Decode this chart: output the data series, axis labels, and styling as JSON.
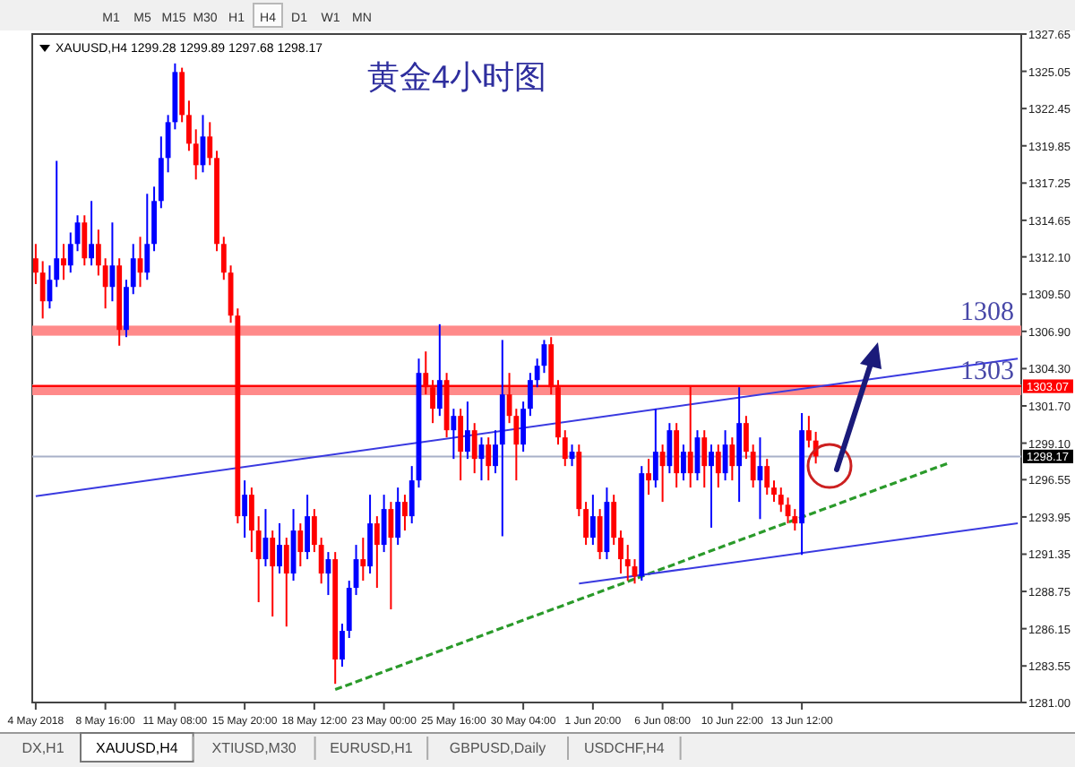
{
  "chart_data": {
    "type": "candlestick",
    "title": "黄金4小时图",
    "categories": [
      "4 May 2018",
      null,
      null,
      null,
      null,
      null,
      null,
      null,
      null,
      null,
      "8 May 16:00",
      null,
      null,
      null,
      null,
      null,
      null,
      null,
      null,
      null,
      "11 May 08:00",
      null,
      null,
      null,
      null,
      null,
      null,
      null,
      null,
      null,
      "15 May 20:00",
      null,
      null,
      null,
      null,
      null,
      null,
      null,
      null,
      null,
      "18 May 12:00",
      null,
      null,
      null,
      null,
      null,
      null,
      null,
      null,
      null,
      "23 May 00:00",
      null,
      null,
      null,
      null,
      null,
      null,
      null,
      null,
      null,
      "25 May 16:00",
      null,
      null,
      null,
      null,
      null,
      null,
      null,
      null,
      null,
      "30 May 04:00",
      null,
      null,
      null,
      null,
      null,
      null,
      null,
      null,
      null,
      "1 Jun 20:00",
      null,
      null,
      null,
      null,
      null,
      null,
      null,
      null,
      null,
      "6 Jun 08:00",
      null,
      null,
      null,
      null,
      null,
      null,
      null,
      null,
      null,
      "10 Jun 22:00",
      null,
      null,
      null,
      null,
      null,
      null,
      null,
      null,
      null,
      "13 Jun 12:00",
      null,
      null,
      null,
      null,
      null,
      null,
      null,
      null,
      null,
      null,
      null,
      null,
      null,
      null,
      null,
      null,
      null,
      null,
      null,
      null,
      null,
      null,
      null,
      null,
      null,
      null,
      null,
      null,
      null,
      null,
      null
    ],
    "ohlc": [
      [
        1312,
        1313,
        1310.2,
        1311
      ],
      [
        1311,
        1311.8,
        1307.8,
        1309
      ],
      [
        1309,
        1311.5,
        1308.5,
        1310.5
      ],
      [
        1310.5,
        1318.8,
        1310,
        1312
      ],
      [
        1312,
        1313,
        1310.5,
        1311.5
      ],
      [
        1311.5,
        1313.8,
        1311,
        1313
      ],
      [
        1313,
        1315,
        1312.5,
        1314.5
      ],
      [
        1314.5,
        1315,
        1311.5,
        1312
      ],
      [
        1312,
        1316,
        1311.5,
        1313
      ],
      [
        1313,
        1314,
        1310.8,
        1311.5
      ],
      [
        1311.5,
        1312,
        1308.5,
        1310
      ],
      [
        1310,
        1314.5,
        1309,
        1311.5
      ],
      [
        1311.5,
        1312,
        1305.9,
        1307
      ],
      [
        1307,
        1310.5,
        1306.5,
        1310
      ],
      [
        1310,
        1313,
        1309.5,
        1312
      ],
      [
        1312,
        1313.5,
        1310,
        1311
      ],
      [
        1311,
        1316.5,
        1310.5,
        1313
      ],
      [
        1313,
        1317,
        1312.5,
        1316
      ],
      [
        1316,
        1320.5,
        1315.5,
        1319
      ],
      [
        1319,
        1322,
        1318,
        1321.5
      ],
      [
        1321.5,
        1325.6,
        1321,
        1325
      ],
      [
        1325,
        1325.3,
        1321.5,
        1322
      ],
      [
        1322,
        1323,
        1319.5,
        1320
      ],
      [
        1320,
        1321,
        1317.5,
        1318.5
      ],
      [
        1318.5,
        1322,
        1318,
        1320.5
      ],
      [
        1320.5,
        1321.5,
        1318.5,
        1319
      ],
      [
        1319,
        1319.5,
        1312.5,
        1313
      ],
      [
        1313,
        1313.5,
        1310.5,
        1311
      ],
      [
        1311,
        1311.5,
        1307.5,
        1308
      ],
      [
        1308,
        1308.5,
        1293.5,
        1294
      ],
      [
        1294,
        1296.5,
        1292.5,
        1295.5
      ],
      [
        1295.5,
        1296,
        1291.5,
        1293
      ],
      [
        1293,
        1294,
        1288,
        1291
      ],
      [
        1291,
        1294.5,
        1290.5,
        1292.5
      ],
      [
        1292.5,
        1293,
        1287,
        1290.5
      ],
      [
        1290.5,
        1293.5,
        1290,
        1292
      ],
      [
        1292,
        1292.5,
        1286.3,
        1290
      ],
      [
        1290,
        1294.5,
        1289.5,
        1293
      ],
      [
        1293,
        1293.5,
        1290.5,
        1291.5
      ],
      [
        1291.5,
        1295.5,
        1291,
        1294
      ],
      [
        1294,
        1294.5,
        1291.5,
        1292
      ],
      [
        1292,
        1292.5,
        1289.3,
        1290
      ],
      [
        1290,
        1291.5,
        1288.5,
        1291
      ],
      [
        1291,
        1291.5,
        1282.3,
        1284
      ],
      [
        1284,
        1286.5,
        1283.5,
        1286
      ],
      [
        1286,
        1289.5,
        1285.5,
        1289
      ],
      [
        1289,
        1292,
        1288.5,
        1291
      ],
      [
        1291,
        1292.5,
        1289.5,
        1290.5
      ],
      [
        1290.5,
        1295.5,
        1290,
        1293.5
      ],
      [
        1293.5,
        1294,
        1289,
        1292
      ],
      [
        1292,
        1295.5,
        1291.5,
        1294.5
      ],
      [
        1294.5,
        1295,
        1287.5,
        1292.5
      ],
      [
        1292.5,
        1296,
        1292,
        1295
      ],
      [
        1295,
        1295.5,
        1293,
        1294
      ],
      [
        1294,
        1297.5,
        1293.5,
        1296.5
      ],
      [
        1296.5,
        1305,
        1296,
        1304
      ],
      [
        1304,
        1305.5,
        1302.5,
        1303
      ],
      [
        1303,
        1303.5,
        1300.5,
        1301.5
      ],
      [
        1301.5,
        1307.4,
        1301,
        1303.5
      ],
      [
        1303.5,
        1304,
        1299.5,
        1300
      ],
      [
        1300,
        1301.5,
        1298,
        1301
      ],
      [
        1301,
        1301.5,
        1296.5,
        1298.5
      ],
      [
        1298.5,
        1302,
        1298,
        1300
      ],
      [
        1300,
        1300.5,
        1297,
        1298
      ],
      [
        1298,
        1299.5,
        1296.5,
        1299
      ],
      [
        1299,
        1299.5,
        1296.5,
        1297.5
      ],
      [
        1297.5,
        1300,
        1297,
        1299
      ],
      [
        1299,
        1306.3,
        1292.6,
        1302.5
      ],
      [
        1302.5,
        1304,
        1300.5,
        1301
      ],
      [
        1301,
        1301.5,
        1296.5,
        1299
      ],
      [
        1299,
        1302,
        1298.5,
        1301.5
      ],
      [
        1301.5,
        1304,
        1301,
        1303.5
      ],
      [
        1303.5,
        1305,
        1303,
        1304.5
      ],
      [
        1304.5,
        1306.3,
        1304,
        1306
      ],
      [
        1306,
        1306.5,
        1302.5,
        1303
      ],
      [
        1303,
        1303.5,
        1299,
        1299.5
      ],
      [
        1299.5,
        1300,
        1297.5,
        1298
      ],
      [
        1298,
        1299,
        1297.5,
        1298.5
      ],
      [
        1298.5,
        1299,
        1294,
        1294.5
      ],
      [
        1294.5,
        1295,
        1292,
        1292.5
      ],
      [
        1292.5,
        1295.5,
        1292,
        1294
      ],
      [
        1294,
        1294.5,
        1291,
        1291.5
      ],
      [
        1291.5,
        1296,
        1291,
        1295
      ],
      [
        1295,
        1295.5,
        1292,
        1292.5
      ],
      [
        1292.5,
        1293,
        1290,
        1291
      ],
      [
        1291,
        1292,
        1289.5,
        1290.5
      ],
      [
        1290.5,
        1291,
        1289.3,
        1289.8
      ],
      [
        1289.8,
        1297.5,
        1289.5,
        1297
      ],
      [
        1297,
        1298,
        1295.5,
        1296.5
      ],
      [
        1296.5,
        1301.5,
        1296,
        1298.5
      ],
      [
        1298.5,
        1299,
        1295,
        1297.5
      ],
      [
        1297.5,
        1300.5,
        1297,
        1300
      ],
      [
        1300,
        1300.5,
        1296,
        1297
      ],
      [
        1297,
        1299,
        1296.5,
        1298.5
      ],
      [
        1298.5,
        1303.1,
        1296,
        1297
      ],
      [
        1297,
        1300,
        1296.5,
        1299.5
      ],
      [
        1299.5,
        1300,
        1296,
        1297.5
      ],
      [
        1297.5,
        1299,
        1293.2,
        1298.5
      ],
      [
        1298.5,
        1299,
        1296,
        1297
      ],
      [
        1297,
        1300,
        1296.5,
        1299
      ],
      [
        1299,
        1299.5,
        1296.5,
        1297.5
      ],
      [
        1297.5,
        1303,
        1295,
        1300.5
      ],
      [
        1300.5,
        1301,
        1298,
        1298.5
      ],
      [
        1298.5,
        1299,
        1296,
        1296.5
      ],
      [
        1296.5,
        1299.5,
        1293.8,
        1297.5
      ],
      [
        1297.5,
        1298,
        1295.5,
        1296
      ],
      [
        1296,
        1296.5,
        1295,
        1295.5
      ],
      [
        1295.5,
        1296,
        1294.3,
        1294.8
      ],
      [
        1294.8,
        1295.3,
        1293.5,
        1294
      ],
      [
        1294,
        1294.5,
        1293,
        1293.5
      ],
      [
        1293.5,
        1301.2,
        1291.3,
        1300
      ],
      [
        1300,
        1301,
        1298.8,
        1299.28
      ],
      [
        1299.28,
        1299.89,
        1297.68,
        1298.17
      ],
      null,
      null,
      null,
      null,
      null,
      null,
      null,
      null,
      null,
      null,
      null,
      null,
      null,
      null,
      null,
      null,
      null,
      null,
      null,
      null,
      null,
      null,
      null,
      null,
      null,
      null,
      null,
      null,
      null
    ],
    "colors": [
      "#ff0000",
      "#ff0000",
      "#0000ff",
      "#0000ff",
      "#ff0000",
      "#0000ff",
      "#0000ff",
      "#ff0000",
      "#0000ff",
      "#ff0000",
      "#ff0000",
      "#0000ff",
      "#ff0000",
      "#0000ff",
      "#0000ff",
      "#ff0000",
      "#0000ff",
      "#0000ff",
      "#0000ff",
      "#0000ff",
      "#0000ff",
      "#ff0000",
      "#ff0000",
      "#ff0000",
      "#0000ff",
      "#ff0000",
      "#ff0000",
      "#ff0000",
      "#ff0000",
      "#ff0000",
      "#0000ff",
      "#ff0000",
      "#ff0000",
      "#0000ff",
      "#ff0000",
      "#0000ff",
      "#ff0000",
      "#0000ff",
      "#ff0000",
      "#0000ff",
      "#ff0000",
      "#ff0000",
      "#0000ff",
      "#ff0000",
      "#0000ff",
      "#0000ff",
      "#0000ff",
      "#ff0000",
      "#0000ff",
      "#ff0000",
      "#0000ff",
      "#ff0000",
      "#0000ff",
      "#ff0000",
      "#0000ff",
      "#0000ff",
      "#ff0000",
      "#ff0000",
      "#0000ff",
      "#ff0000",
      "#0000ff",
      "#ff0000",
      "#0000ff",
      "#ff0000",
      "#0000ff",
      "#ff0000",
      "#0000ff",
      "#0000ff",
      "#ff0000",
      "#ff0000",
      "#0000ff",
      "#0000ff",
      "#0000ff",
      "#0000ff",
      "#ff0000",
      "#ff0000",
      "#ff0000",
      "#0000ff",
      "#ff0000",
      "#ff0000",
      "#0000ff",
      "#ff0000",
      "#0000ff",
      "#ff0000",
      "#ff0000",
      "#ff0000",
      "#ff0000",
      "#0000ff",
      "#ff0000",
      "#0000ff",
      "#ff0000",
      "#0000ff",
      "#ff0000",
      "#0000ff",
      "#ff0000",
      "#0000ff",
      "#ff0000",
      "#0000ff",
      "#ff0000",
      "#0000ff",
      "#ff0000",
      "#0000ff",
      "#ff0000",
      "#ff0000",
      "#0000ff",
      "#ff0000",
      "#ff0000",
      "#ff0000",
      "#ff0000",
      "#ff0000",
      "#0000ff",
      "#ff0000",
      "#ff0000",
      null,
      null,
      null,
      null,
      null,
      null,
      null,
      null,
      null,
      null,
      null,
      null,
      null,
      null,
      null,
      null,
      null,
      null,
      null,
      null,
      null,
      null,
      null,
      null,
      null,
      null,
      null,
      null,
      null
    ],
    "series": [
      {
        "type": "line",
        "color": "#3a3ae0",
        "values": [
          1295.4,
          null,
          null,
          null,
          null,
          null,
          null,
          null,
          null,
          null,
          null,
          null,
          null,
          null,
          null,
          null,
          null,
          null,
          null,
          null,
          null,
          null,
          null,
          null,
          null,
          null,
          null,
          null,
          null,
          null,
          null,
          null,
          null,
          null,
          null,
          null,
          null,
          null,
          null,
          null,
          null,
          null,
          null,
          null,
          null,
          null,
          null,
          null,
          null,
          null,
          null,
          null,
          null,
          null,
          null,
          null,
          null,
          null,
          null,
          null,
          null,
          null,
          null,
          null,
          null,
          null,
          null,
          null,
          null,
          null,
          null,
          null,
          null,
          null,
          null,
          null,
          null,
          null,
          null,
          null,
          null,
          null,
          null,
          null,
          null,
          null,
          null,
          null,
          null,
          null,
          null,
          null,
          null,
          null,
          null,
          null,
          null,
          null,
          null,
          null,
          null,
          null,
          null,
          null,
          null,
          null,
          null,
          null,
          null,
          null,
          null,
          null,
          null,
          null,
          null,
          null,
          null,
          null,
          null,
          null,
          null,
          null,
          null,
          null,
          null,
          null,
          null,
          null,
          null,
          null,
          null,
          null,
          null,
          null,
          null,
          null,
          null,
          null,
          null,
          null,
          null,
          1305.0
        ]
      },
      {
        "type": "line",
        "color": "#2a9a2a",
        "line_style": "dashed",
        "values": [
          null,
          null,
          null,
          null,
          null,
          null,
          null,
          null,
          null,
          null,
          null,
          null,
          null,
          null,
          null,
          null,
          null,
          null,
          null,
          null,
          null,
          null,
          null,
          null,
          null,
          null,
          null,
          null,
          null,
          null,
          null,
          null,
          null,
          null,
          null,
          null,
          null,
          null,
          null,
          null,
          null,
          null,
          null,
          1281.9,
          null,
          null,
          null,
          null,
          null,
          null,
          null,
          null,
          null,
          null,
          null,
          null,
          null,
          null,
          null,
          null,
          null,
          null,
          null,
          null,
          null,
          null,
          null,
          null,
          null,
          null,
          null,
          null,
          null,
          null,
          null,
          null,
          null,
          null,
          null,
          null,
          null,
          null,
          null,
          null,
          null,
          null,
          null,
          null,
          null,
          null,
          null,
          null,
          null,
          null,
          null,
          null,
          null,
          null,
          null,
          null,
          null,
          null,
          null,
          null,
          null,
          null,
          null,
          null,
          null,
          null,
          null,
          null,
          null,
          null,
          null,
          null,
          null,
          null,
          null,
          null,
          null,
          null,
          null,
          null,
          null,
          null,
          null,
          null,
          null,
          null,
          null,
          1297.7,
          null,
          null,
          null,
          null,
          null,
          null,
          null,
          null,
          null,
          null
        ]
      },
      {
        "type": "line",
        "color": "#3a3ae0",
        "values": [
          null,
          null,
          null,
          null,
          null,
          null,
          null,
          null,
          null,
          null,
          null,
          null,
          null,
          null,
          null,
          null,
          null,
          null,
          null,
          null,
          null,
          null,
          null,
          null,
          null,
          null,
          null,
          null,
          null,
          null,
          null,
          null,
          null,
          null,
          null,
          null,
          null,
          null,
          null,
          null,
          null,
          null,
          null,
          null,
          null,
          null,
          null,
          null,
          null,
          null,
          null,
          null,
          null,
          null,
          null,
          null,
          null,
          null,
          null,
          null,
          null,
          null,
          null,
          null,
          null,
          null,
          null,
          null,
          null,
          null,
          null,
          null,
          null,
          null,
          null,
          null,
          null,
          null,
          1289.3,
          null,
          null,
          null,
          null,
          null,
          null,
          null,
          null,
          null,
          null,
          null,
          null,
          null,
          null,
          null,
          null,
          null,
          null,
          null,
          null,
          null,
          null,
          null,
          null,
          null,
          null,
          null,
          null,
          null,
          null,
          null,
          null,
          null,
          null,
          null,
          null,
          null,
          null,
          null,
          null,
          null,
          null,
          null,
          null,
          null,
          null,
          null,
          null,
          null,
          null,
          null,
          null,
          null,
          null,
          null,
          null,
          null,
          null,
          null,
          null,
          null,
          null,
          1293.5
        ]
      }
    ],
    "ylim": [
      1281.0,
      1327.65
    ],
    "yticks": [
      {
        "value": 1281,
        "label": "1281.00"
      },
      1283.55,
      1286.15,
      1288.75,
      1291.35,
      1293.95,
      1296.55,
      {
        "value": 1299.1,
        "label": "1299.10"
      },
      {
        "value": 1301.7,
        "label": "1301.70"
      },
      {
        "value": 1304.3,
        "label": "1304.30"
      },
      {
        "value": 1306.9,
        "label": "1306.90"
      },
      {
        "value": 1309.5,
        "label": "1309.50"
      },
      {
        "value": 1312.1,
        "label": "1312.10"
      },
      1314.65,
      1317.25,
      1319.85,
      1322.45,
      1325.05,
      1327.65
    ],
    "bands": [
      {
        "axis": "y",
        "from": 1306.6,
        "to": 1307.3,
        "label": "1308",
        "color": "#ff8a8a"
      },
      {
        "axis": "y",
        "from": 1302.45,
        "to": 1303.2,
        "label": "1303",
        "color": "#ff8a8a"
      }
    ],
    "ref_lines": [
      {
        "axis": "y",
        "value": 1303.07,
        "label": "1303.07",
        "color": "#ff0000"
      },
      {
        "axis": "y",
        "value": 1298.17,
        "label": "1298.17",
        "color": "#a8b0c8"
      }
    ],
    "annotations": [
      "XAUUSD,H4  1299.28 1299.89 1297.68 1298.17",
      "M1",
      "M5",
      "M15",
      "M30",
      "H1",
      "H4",
      "D1",
      "W1",
      "MN",
      "DX,H1",
      "XAUUSD,H4",
      "XTIUSD,M30",
      "EURUSD,H1",
      "GBPUSD,Daily",
      "USDCHF,H4"
    ]
  }
}
